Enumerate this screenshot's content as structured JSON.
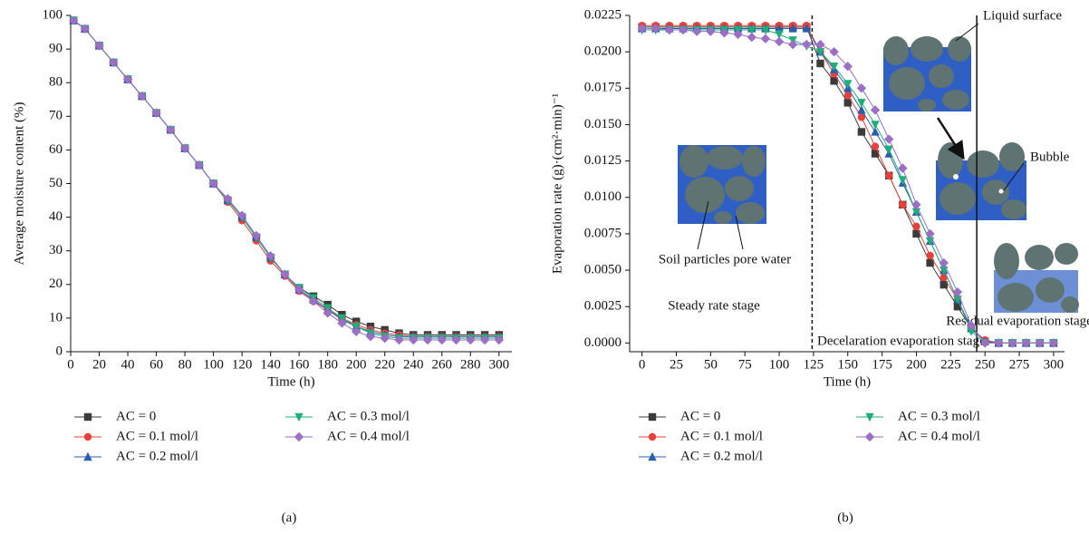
{
  "chart_data": [
    {
      "type": "line",
      "caption": "(a)",
      "x_label": "Time (h)",
      "y_label": "Average moisture content (%)",
      "x": [
        2,
        10,
        20,
        30,
        40,
        50,
        60,
        70,
        80,
        90,
        100,
        110,
        120,
        130,
        140,
        150,
        160,
        170,
        180,
        190,
        200,
        210,
        220,
        230,
        240,
        250,
        260,
        270,
        280,
        290,
        300
      ],
      "xlim": [
        0,
        309
      ],
      "ylim": [
        0,
        100
      ],
      "xticks": [
        0,
        20,
        40,
        60,
        80,
        100,
        120,
        140,
        160,
        180,
        200,
        220,
        240,
        260,
        280,
        300
      ],
      "yticks": [
        0,
        10,
        20,
        30,
        40,
        50,
        60,
        70,
        80,
        90,
        100
      ],
      "grid": false,
      "legend": "below",
      "series": [
        {
          "name": "AC = 0",
          "color": "#3b3b3b",
          "marker": "square",
          "values": [
            98.5,
            96,
            91,
            86,
            81,
            76,
            71,
            66,
            60.5,
            55.5,
            50,
            45,
            40,
            34,
            28,
            23,
            19,
            16.5,
            14,
            11,
            9,
            7.5,
            6.5,
            5.5,
            5,
            5,
            5,
            5,
            5,
            5,
            5
          ]
        },
        {
          "name": "AC = 0.1 mol/l",
          "color": "#e8403a",
          "marker": "circle",
          "values": [
            98.5,
            96,
            91,
            86,
            81,
            76,
            71,
            66,
            60.5,
            55.5,
            50,
            44.5,
            39,
            33,
            27,
            22.5,
            18,
            15,
            12.5,
            10,
            8,
            6.5,
            5.5,
            5,
            4.5,
            4.5,
            4.5,
            4.5,
            4.5,
            4.5,
            4.5
          ]
        },
        {
          "name": "AC = 0.2 mol/l",
          "color": "#2a5db0",
          "marker": "triangle",
          "values": [
            98.5,
            96,
            91,
            86,
            81,
            76,
            71,
            66,
            60.5,
            55.5,
            50,
            45,
            40,
            34,
            28,
            23,
            18.5,
            15.5,
            12.5,
            9.5,
            7.5,
            6,
            5,
            4.5,
            4.5,
            4.5,
            4.5,
            4.5,
            4.5,
            4.5,
            4.5
          ]
        },
        {
          "name": "AC = 0.3 mol/l",
          "color": "#1fae7a",
          "marker": "down-triangle",
          "values": [
            98.5,
            96,
            91,
            86,
            81,
            76,
            71,
            66,
            60.5,
            55.5,
            50,
            45,
            40,
            34,
            28,
            23,
            19,
            16,
            13,
            10,
            7.5,
            5.5,
            4.5,
            4,
            4,
            4,
            4,
            4,
            4,
            4,
            4
          ]
        },
        {
          "name": "AC = 0.4 mol/l",
          "color": "#9b6fc4",
          "marker": "diamond",
          "values": [
            98.5,
            96,
            91,
            86,
            81,
            76,
            71,
            66,
            60.5,
            55.5,
            50,
            45.5,
            40.5,
            34.5,
            28.5,
            23,
            18.5,
            15,
            11.5,
            8.5,
            6,
            4.5,
            4,
            3.5,
            3.5,
            3.5,
            3.5,
            3.5,
            3.5,
            3.5,
            3.5
          ]
        }
      ]
    },
    {
      "type": "line",
      "caption": "(b)",
      "x_label": "Time (h)",
      "y_label": "Evaporation rate (g)·(cm²·min)⁻¹",
      "x": [
        0,
        10,
        20,
        30,
        40,
        50,
        60,
        70,
        80,
        90,
        100,
        110,
        120,
        130,
        140,
        150,
        160,
        170,
        180,
        190,
        200,
        210,
        220,
        230,
        240,
        250,
        260,
        270,
        280,
        290,
        300
      ],
      "xlim": [
        -9,
        308
      ],
      "ylim": [
        -0.0006,
        0.0225
      ],
      "xticks": [
        0,
        25,
        50,
        75,
        100,
        125,
        150,
        175,
        200,
        225,
        250,
        275,
        300
      ],
      "yticks": [
        {
          "value": 0,
          "label": "0.0000"
        },
        0.0025,
        {
          "value": 0.005,
          "label": "0.0050"
        },
        0.0075,
        {
          "value": 0.01,
          "label": "0.0100"
        },
        0.0125,
        {
          "value": 0.015,
          "label": "0.0150"
        },
        0.0175,
        {
          "value": 0.02,
          "label": "0.0200"
        },
        0.0225
      ],
      "grid": false,
      "legend": "below",
      "stage_boundaries": [
        124,
        244
      ],
      "annotations": [
        "Liquid surface",
        "Bubble",
        "Soil particles pore water",
        "Steady rate stage",
        "Decelaration evaporation stage",
        "Residual evaporation stage"
      ],
      "series": [
        {
          "name": "AC = 0",
          "color": "#3b3b3b",
          "marker": "square",
          "values": [
            0.0217,
            0.0217,
            0.0217,
            0.0217,
            0.0217,
            0.0217,
            0.0217,
            0.0217,
            0.0217,
            0.0217,
            0.0217,
            0.0217,
            0.0217,
            0.0192,
            0.018,
            0.0165,
            0.0145,
            0.013,
            0.0115,
            0.0095,
            0.0075,
            0.0055,
            0.004,
            0.0025,
            0.001,
            0.0001,
            0,
            0,
            0,
            0,
            0
          ]
        },
        {
          "name": "AC = 0.1 mol/l",
          "color": "#e8403a",
          "marker": "circle",
          "values": [
            0.0218,
            0.0218,
            0.0218,
            0.0218,
            0.0218,
            0.0218,
            0.0218,
            0.0218,
            0.0218,
            0.0218,
            0.0218,
            0.0218,
            0.0218,
            0.02,
            0.0185,
            0.017,
            0.0155,
            0.0135,
            0.0115,
            0.0095,
            0.008,
            0.006,
            0.0045,
            0.003,
            0.001,
            0.0002,
            0,
            0,
            0,
            0,
            0
          ]
        },
        {
          "name": "AC = 0.2 mol/l",
          "color": "#2a5db0",
          "marker": "triangle",
          "values": [
            0.0216,
            0.0216,
            0.0216,
            0.0216,
            0.0216,
            0.0216,
            0.0216,
            0.0216,
            0.0216,
            0.0216,
            0.0216,
            0.0216,
            0.0216,
            0.02,
            0.0188,
            0.0175,
            0.016,
            0.0145,
            0.013,
            0.011,
            0.009,
            0.007,
            0.005,
            0.003,
            0.001,
            0.0001,
            0,
            0,
            0,
            0,
            0
          ]
        },
        {
          "name": "AC = 0.3 mol/l",
          "color": "#1fae7a",
          "marker": "down-triangle",
          "values": [
            0.0215,
            0.0215,
            0.0215,
            0.0215,
            0.0215,
            0.0215,
            0.0215,
            0.0215,
            0.0215,
            0.0215,
            0.0212,
            0.0208,
            0.0204,
            0.02,
            0.019,
            0.0178,
            0.0165,
            0.015,
            0.0133,
            0.0112,
            0.009,
            0.007,
            0.005,
            0.003,
            0.0008,
            0,
            0,
            0,
            0,
            0,
            0
          ]
        },
        {
          "name": "AC = 0.4 mol/l",
          "color": "#9b6fc4",
          "marker": "diamond",
          "values": [
            0.0216,
            0.0216,
            0.0215,
            0.0215,
            0.0214,
            0.0214,
            0.0213,
            0.0212,
            0.021,
            0.0209,
            0.0207,
            0.0205,
            0.0205,
            0.0205,
            0.02,
            0.019,
            0.0175,
            0.016,
            0.014,
            0.012,
            0.0095,
            0.0075,
            0.0055,
            0.0035,
            0.0012,
            0,
            0,
            0,
            0,
            0,
            0
          ]
        }
      ]
    }
  ]
}
